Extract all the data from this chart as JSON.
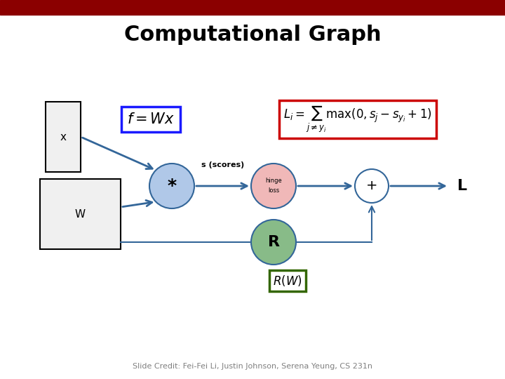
{
  "title": "Computational Graph",
  "title_fontsize": 22,
  "title_fontweight": "bold",
  "bg_color": "#ffffff",
  "header_color": "#8b0000",
  "slide_credit": "Slide Credit: Fei-Fei Li, Justin Johnson, Serena Yeung, CS 231n",
  "formula1_text": "$f = Wx$",
  "formula2_text": "$L_i = \\sum_{j \\neq y_i} \\max(0, s_j - s_{y_i} + 1)$",
  "formula1_box_color": "#1a1aff",
  "formula2_box_color": "#cc0000",
  "x_box_label": "x",
  "w_box_label": "W",
  "star_label": "*",
  "scores_label": "s (scores)",
  "hinge_label1": "hinge",
  "hinge_label2": "loss",
  "plus_label": "+",
  "L_label": "L",
  "R_label": "R",
  "RW_label": "$R(W)$",
  "RW_box_color": "#336600",
  "star_circle_color": "#b0c8e8",
  "hinge_circle_color": "#f0b8b8",
  "plus_circle_color": "#ffffff",
  "R_circle_color": "#88bb88",
  "arrow_color": "#336699",
  "node_edge_color": "#336699"
}
